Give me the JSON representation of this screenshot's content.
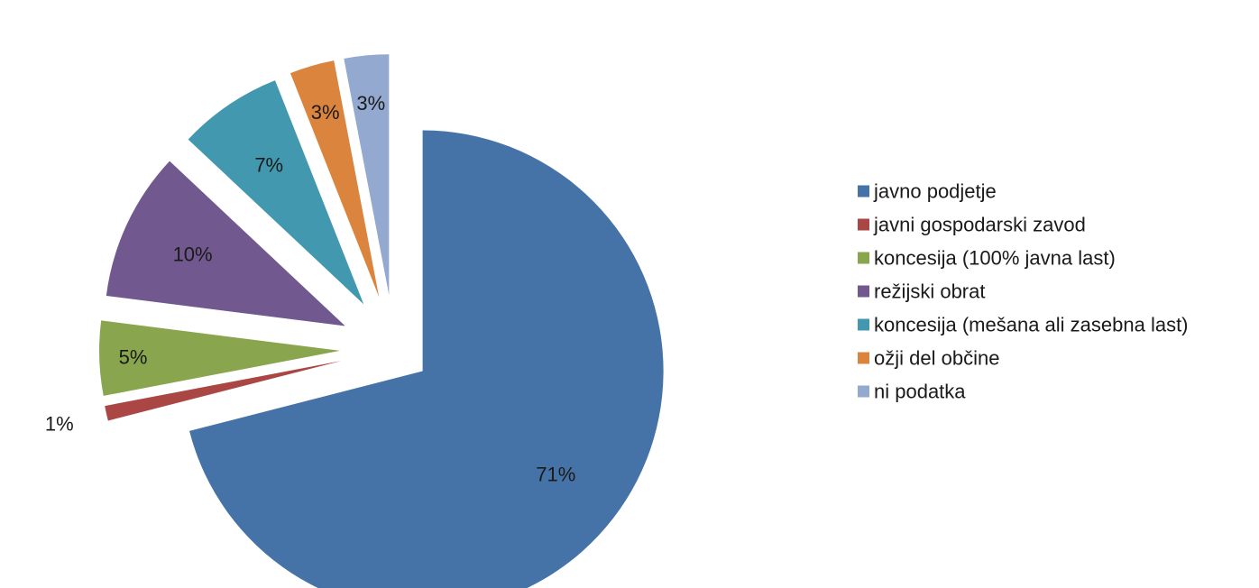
{
  "chart_data": {
    "type": "pie",
    "title": "",
    "legend_position": "right",
    "categories": [
      "javno podjetje",
      "javni gospodarski zavod",
      "koncesija (100% javna last)",
      "režijski obrat",
      "koncesija (mešana ali zasebna last)",
      "ožji del občine",
      "ni podatka"
    ],
    "values": [
      71,
      1,
      5,
      10,
      7,
      3,
      3
    ],
    "labels": [
      "71%",
      "1%",
      "5%",
      "10%",
      "7%",
      "3%",
      "3%"
    ],
    "colors": [
      "#4573a7",
      "#aa4644",
      "#89a54e",
      "#71588f",
      "#4298af",
      "#db843d",
      "#93a9cf"
    ],
    "exploded": true
  }
}
